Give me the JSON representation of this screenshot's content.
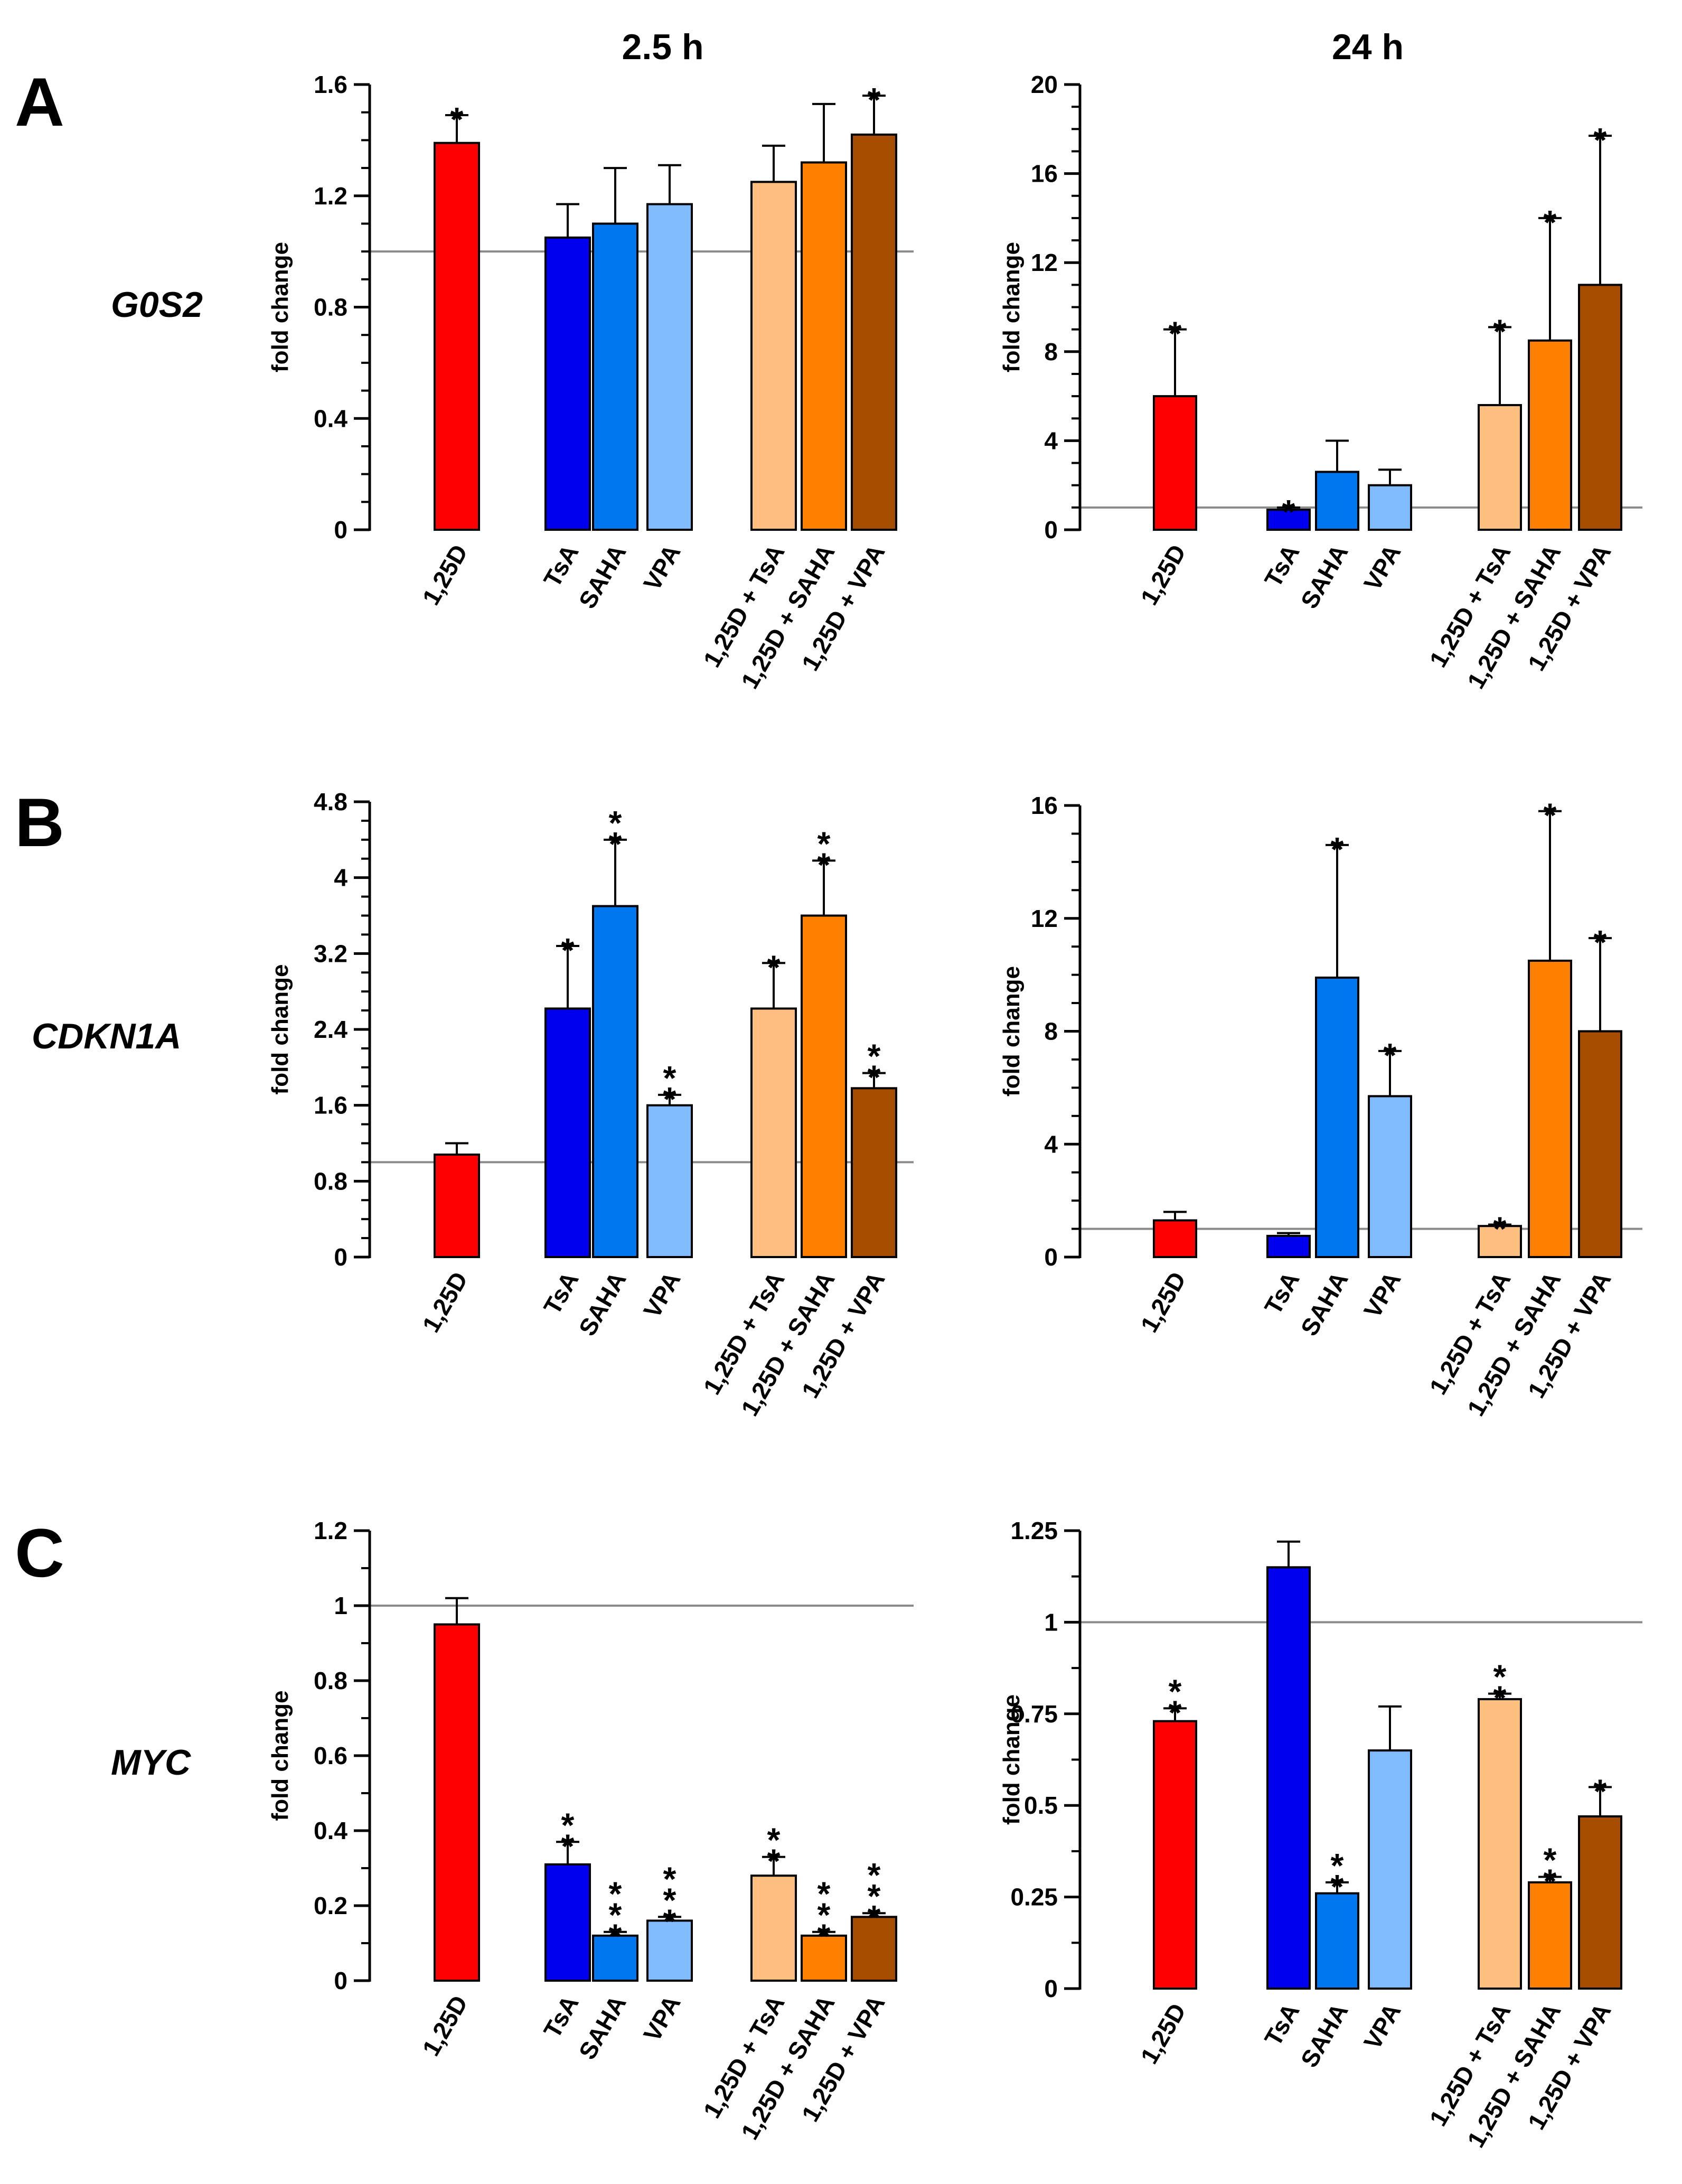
{
  "column_titles": [
    "2.5 h",
    "24 h"
  ],
  "panels": [
    {
      "letter": "A",
      "gene": "G0S2"
    },
    {
      "letter": "B",
      "gene": "CDKN1A"
    },
    {
      "letter": "C",
      "gene": "MYC"
    }
  ],
  "colors": {
    "1,25D": "#ff0000",
    "TsA": "#0000ee",
    "SAHA": "#0077ee",
    "VPA": "#80bbff",
    "1,25D + TsA": "#ffbf7f",
    "1,25D + SAHA": "#ff7f00",
    "1,25D + VPA": "#a64d00"
  },
  "chart_data": [
    {
      "panel": "A",
      "gene": "G0S2",
      "time": "2.5 h",
      "type": "bar",
      "ylabel": "fold change",
      "ylim": [
        0,
        1.6
      ],
      "ymajor": 0.4,
      "yminor": 0.1,
      "yticks": [
        "0",
        "0.4",
        "0.8",
        "1.2",
        "1.6"
      ],
      "baseline": 1,
      "categories": [
        "1,25D",
        "TsA",
        "SAHA",
        "VPA",
        "1,25D + TsA",
        "1,25D + SAHA",
        "1,25D + VPA"
      ],
      "values": [
        1.39,
        1.05,
        1.1,
        1.17,
        1.25,
        1.32,
        1.42
      ],
      "errors": [
        0.1,
        0.12,
        0.2,
        0.14,
        0.13,
        0.21,
        0.14
      ],
      "significance": [
        "*",
        "",
        "",
        "",
        "",
        "",
        "*"
      ]
    },
    {
      "panel": "A",
      "gene": "G0S2",
      "time": "24 h",
      "type": "bar",
      "ylabel": "fold change",
      "ylim": [
        0,
        20
      ],
      "ymajor": 4,
      "yminor": 1,
      "yticks": [
        "0",
        "4",
        "8",
        "12",
        "16",
        "20"
      ],
      "baseline": 1,
      "categories": [
        "1,25D",
        "TsA",
        "SAHA",
        "VPA",
        "1,25D + TsA",
        "1,25D + SAHA",
        "1,25D + VPA"
      ],
      "values": [
        6.0,
        0.9,
        2.6,
        2.0,
        5.6,
        8.5,
        11.0
      ],
      "errors": [
        3.0,
        0.1,
        1.4,
        0.7,
        3.5,
        5.5,
        6.7
      ],
      "significance": [
        "*",
        "*",
        "",
        "",
        "*",
        "*",
        "*"
      ]
    },
    {
      "panel": "B",
      "gene": "CDKN1A",
      "time": "2.5 h",
      "type": "bar",
      "ylabel": "fold change",
      "ylim": [
        0,
        4.8
      ],
      "ymajor": 0.8,
      "yminor": 0.2,
      "yticks": [
        "0",
        "0.8",
        "1.6",
        "2.4",
        "3.2",
        "4",
        "4.8"
      ],
      "baseline": 1,
      "categories": [
        "1,25D",
        "TsA",
        "SAHA",
        "VPA",
        "1,25D + TsA",
        "1,25D + SAHA",
        "1,25D + VPA"
      ],
      "values": [
        1.08,
        2.62,
        3.7,
        1.6,
        2.62,
        3.6,
        1.78
      ],
      "errors": [
        0.12,
        0.66,
        0.7,
        0.11,
        0.48,
        0.58,
        0.16
      ],
      "significance": [
        "",
        "*",
        "**",
        "**",
        "*",
        "**",
        "**"
      ]
    },
    {
      "panel": "B",
      "gene": "CDKN1A",
      "time": "24 h",
      "type": "bar",
      "ylabel": "fold change",
      "ylim": [
        0,
        16
      ],
      "ymajor": 4,
      "yminor": 1,
      "yticks": [
        "0",
        "4",
        "8",
        "12",
        "16"
      ],
      "baseline": 1,
      "categories": [
        "1,25D",
        "TsA",
        "SAHA",
        "VPA",
        "1,25D + TsA",
        "1,25D + SAHA",
        "1,25D + VPA"
      ],
      "values": [
        1.3,
        0.75,
        9.9,
        5.7,
        1.1,
        10.5,
        8.0
      ],
      "errors": [
        0.3,
        0.1,
        4.7,
        1.6,
        0.05,
        5.3,
        3.3
      ],
      "significance": [
        "",
        "",
        "*",
        "*",
        "*",
        "*",
        "*"
      ]
    },
    {
      "panel": "C",
      "gene": "MYC",
      "time": "2.5 h",
      "type": "bar",
      "ylabel": "fold change",
      "ylim": [
        0,
        1.2
      ],
      "ymajor": 0.2,
      "yminor": 0.1,
      "yticks": [
        "0",
        "0.2",
        "0.4",
        "0.6",
        "0.8",
        "1",
        "1.2"
      ],
      "baseline": 1,
      "categories": [
        "1,25D",
        "TsA",
        "SAHA",
        "VPA",
        "1,25D + TsA",
        "1,25D + SAHA",
        "1,25D + VPA"
      ],
      "values": [
        0.95,
        0.31,
        0.12,
        0.16,
        0.28,
        0.12,
        0.17
      ],
      "errors": [
        0.07,
        0.06,
        0.01,
        0.01,
        0.05,
        0.01,
        0.01
      ],
      "significance": [
        "",
        "**",
        "***",
        "***",
        "**",
        "***",
        "***"
      ]
    },
    {
      "panel": "C",
      "gene": "MYC",
      "time": "24 h",
      "type": "bar",
      "ylabel": "fold change",
      "ylim": [
        0,
        1.25
      ],
      "ymajor": 0.25,
      "yminor": 0.125,
      "yticks": [
        "0",
        "0.25",
        "0.5",
        "0.75",
        "1",
        "1.25"
      ],
      "baseline": 1,
      "categories": [
        "1,25D",
        "TsA",
        "SAHA",
        "VPA",
        "1,25D + TsA",
        "1,25D + SAHA",
        "1,25D + VPA"
      ],
      "values": [
        0.73,
        1.15,
        0.26,
        0.65,
        0.79,
        0.29,
        0.47
      ],
      "errors": [
        0.035,
        0.07,
        0.03,
        0.12,
        0.015,
        0.015,
        0.08
      ],
      "significance": [
        "**",
        "",
        "**",
        "",
        "**",
        "**",
        "*"
      ]
    }
  ]
}
